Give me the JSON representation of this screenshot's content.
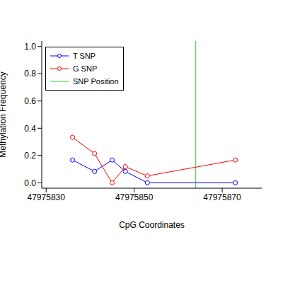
{
  "chart_data": {
    "type": "line",
    "x_label": "CpG Coordinates",
    "y_label": "Methylation Frequency",
    "x": [
      47975836,
      47975841,
      47975845,
      47975848,
      47975853,
      47975873
    ],
    "series": [
      {
        "name": "T SNP",
        "color": "#0000ff",
        "marker": "circle",
        "values": [
          0.167,
          0.083,
          0.167,
          0.083,
          0.0,
          0.0
        ]
      },
      {
        "name": "G SNP",
        "color": "#ff0000",
        "marker": "circle",
        "values": [
          0.333,
          0.214,
          0.0,
          0.118,
          0.05,
          0.167
        ]
      }
    ],
    "vertical_line": {
      "name": "SNP Position",
      "x": 47975864,
      "color": "#33cc33"
    },
    "xlim": [
      47975829,
      47975879
    ],
    "xticks": [
      47975830,
      47975850,
      47975870
    ],
    "ylim": [
      -0.04,
      1.04
    ],
    "yticks": [
      {
        "value": 0.0,
        "label": "0.0"
      },
      {
        "value": 0.2,
        "label": "0.2"
      },
      {
        "value": 0.4,
        "label": "0.4"
      },
      {
        "value": 0.6,
        "label": "0.6"
      },
      {
        "value": 0.8,
        "label": "0.8"
      },
      {
        "value": 1.0,
        "label": "1.0"
      }
    ],
    "legend": "upper left"
  }
}
